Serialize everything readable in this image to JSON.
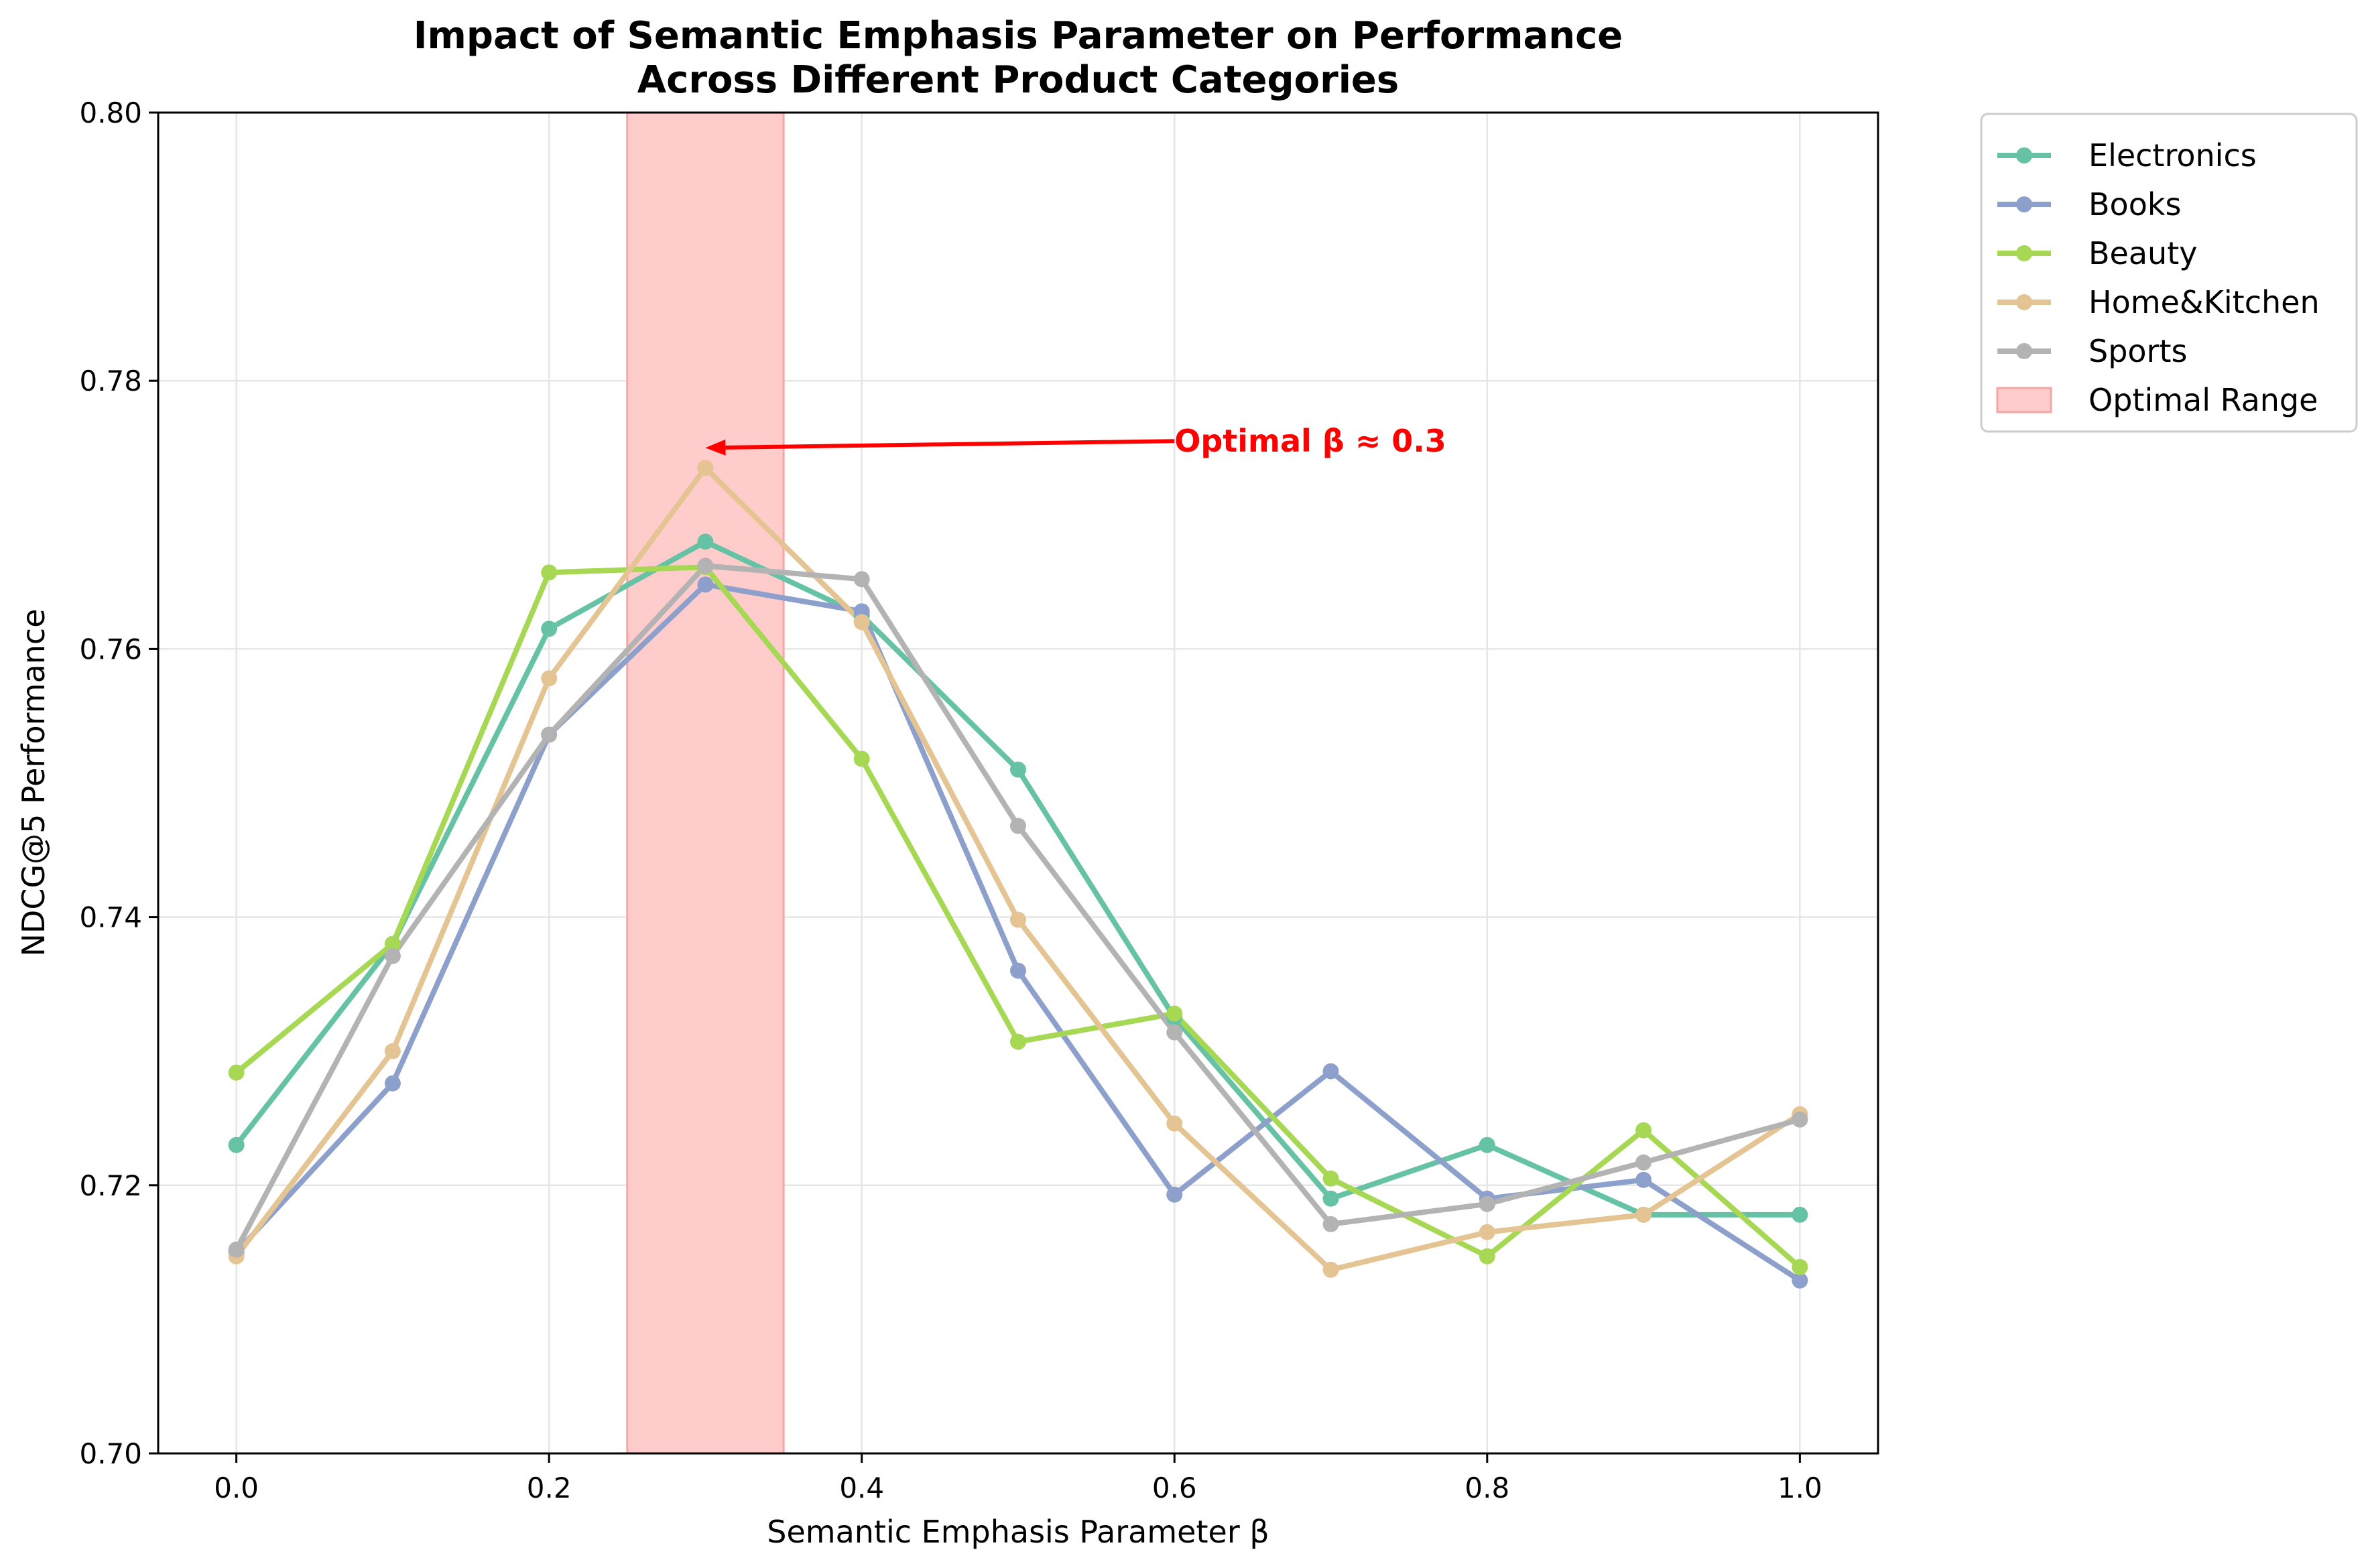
{
  "chart_data": {
    "type": "line",
    "title": [
      "Impact of Semantic Emphasis Parameter on Performance",
      "Across Different Product Categories"
    ],
    "xlabel": "Semantic Emphasis Parameter β",
    "ylabel": "NDCG@5 Performance",
    "xlim": [
      -0.05,
      1.05
    ],
    "ylim": [
      0.7,
      0.8
    ],
    "x": [
      0.0,
      0.1,
      0.2,
      0.3,
      0.4,
      0.5,
      0.6,
      0.7,
      0.8,
      0.9,
      1.0
    ],
    "x_ticks": [
      "0.0",
      "0.2",
      "0.4",
      "0.6",
      "0.8",
      "1.0"
    ],
    "x_tick_values": [
      0.0,
      0.2,
      0.4,
      0.6,
      0.8,
      1.0
    ],
    "y_ticks": [
      "0.70",
      "0.72",
      "0.74",
      "0.76",
      "0.78",
      "0.80"
    ],
    "y_tick_values": [
      0.7,
      0.72,
      0.74,
      0.76,
      0.78,
      0.8
    ],
    "grid": true,
    "legend_placement": "outside top-right",
    "series": [
      {
        "name": "Electronics",
        "color": "#66c2a5",
        "values": [
          0.723,
          0.738,
          0.7615,
          0.768,
          0.7625,
          0.751,
          0.7325,
          0.719,
          0.723,
          0.7178,
          0.7178
        ]
      },
      {
        "name": "Books",
        "color": "#8da0cb",
        "values": [
          0.715,
          0.7276,
          0.7536,
          0.7648,
          0.7628,
          0.736,
          0.7193,
          0.7285,
          0.719,
          0.7204,
          0.7129
        ]
      },
      {
        "name": "Beauty",
        "color": "#a6d854",
        "values": [
          0.7284,
          0.738,
          0.7657,
          0.7661,
          0.7518,
          0.7307,
          0.7328,
          0.7205,
          0.7147,
          0.7241,
          0.7139
        ]
      },
      {
        "name": "Home&Kitchen",
        "color": "#e5c494",
        "values": [
          0.7147,
          0.73,
          0.7578,
          0.7735,
          0.762,
          0.7398,
          0.7246,
          0.7137,
          0.7165,
          0.7178,
          0.7253
        ]
      },
      {
        "name": "Sports",
        "color": "#b3b3b3",
        "values": [
          0.7152,
          0.7371,
          0.7536,
          0.7662,
          0.7652,
          0.7468,
          0.7314,
          0.7171,
          0.7186,
          0.7217,
          0.7249
        ]
      }
    ],
    "shaded_region": {
      "name": "Optimal Range",
      "x_from": 0.25,
      "x_to": 0.35,
      "color": "#ffcccc",
      "edge": "#f3a6a6"
    },
    "annotation": {
      "text": "Optimal β ≈ 0.3",
      "color": "#ff0000",
      "point": [
        0.3,
        0.775
      ],
      "text_at": [
        0.6,
        0.7755
      ]
    }
  }
}
